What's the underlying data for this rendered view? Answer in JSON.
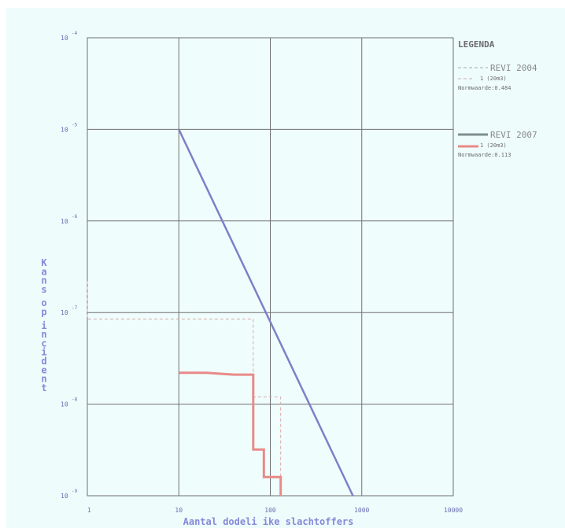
{
  "chart_data": {
    "type": "line",
    "title": "",
    "xlabel": "Aantal dodeli ike slachtoffers",
    "ylabel": "Kans op incident",
    "x_scale": "log",
    "y_scale": "log",
    "xlim": [
      1,
      10000
    ],
    "ylim": [
      1e-09,
      0.0001
    ],
    "grid": true,
    "x_ticks": [
      {
        "value": 1,
        "label": "1"
      },
      {
        "value": 10,
        "label": "10"
      },
      {
        "value": 100,
        "label": "100"
      },
      {
        "value": 1000,
        "label": "1000"
      },
      {
        "value": 10000,
        "label": "10000"
      }
    ],
    "y_ticks": [
      {
        "value": 0.0001,
        "base": "10",
        "exp": "-4"
      },
      {
        "value": 1e-05,
        "base": "10",
        "exp": "-5"
      },
      {
        "value": 1e-06,
        "base": "10",
        "exp": "-6"
      },
      {
        "value": 1e-07,
        "base": "10",
        "exp": "-7"
      },
      {
        "value": 1e-08,
        "base": "10",
        "exp": "-8"
      },
      {
        "value": 1e-09,
        "base": "10",
        "exp": "-9"
      }
    ],
    "norm_line": {
      "color": "#7e80c6",
      "points": [
        [
          10,
          1e-05
        ],
        [
          800,
          1e-09
        ]
      ]
    },
    "series": [
      {
        "name": "1 (20m3)",
        "group": "REVI 2004",
        "style": "dashed",
        "color": "#d9a8a8",
        "points": [
          [
            1,
            2.2e-07
          ],
          [
            1,
            8.5e-08
          ],
          [
            65,
            8.5e-08
          ],
          [
            65,
            1.2e-08
          ],
          [
            130,
            1.2e-08
          ],
          [
            130,
            1e-09
          ]
        ]
      },
      {
        "name": "1 (20m3)",
        "group": "REVI 2007",
        "style": "solid",
        "color": "#e88a88",
        "points": [
          [
            10,
            2.2e-08
          ],
          [
            20,
            2.2e-08
          ],
          [
            40,
            2.1e-08
          ],
          [
            65,
            2.1e-08
          ],
          [
            65,
            3.2e-09
          ],
          [
            85,
            3.2e-09
          ],
          [
            85,
            1.6e-09
          ],
          [
            130,
            1.6e-09
          ],
          [
            130,
            1e-09
          ]
        ]
      }
    ],
    "legend": {
      "title": "LEGENDA",
      "position": "right",
      "groups": [
        {
          "title": "REVI 2004",
          "style": "dashed",
          "color": "#a8a8a8",
          "item_label": "1 (20m3)",
          "item_color": "#c8b0b0",
          "norm": "Normwaarde:0.484"
        },
        {
          "title": "REVI 2007",
          "style": "solid",
          "color": "#7f8f8f",
          "item_label": "1 (20m3)",
          "item_color": "#e88a88",
          "norm": "Normwaarde:0.113"
        }
      ]
    }
  }
}
